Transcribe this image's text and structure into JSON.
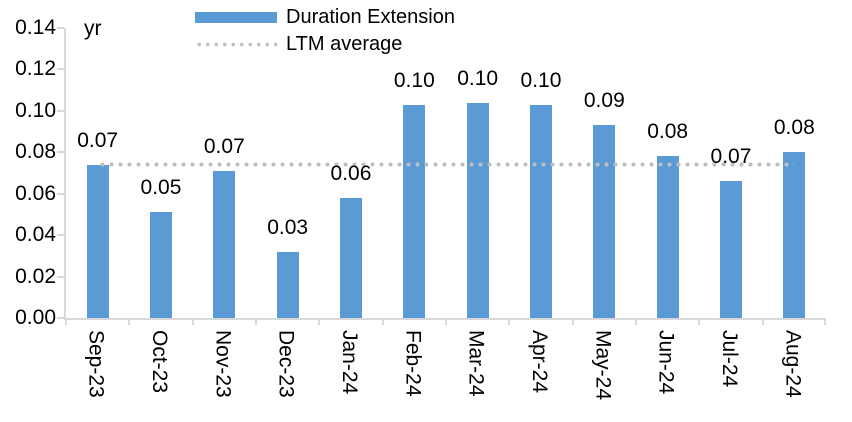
{
  "chart_data": {
    "type": "bar",
    "unit": "yr",
    "categories": [
      "Sep-23",
      "Oct-23",
      "Nov-23",
      "Dec-23",
      "Jan-24",
      "Feb-24",
      "Mar-24",
      "Apr-24",
      "May-24",
      "Jun-24",
      "Jul-24",
      "Aug-24"
    ],
    "series": [
      {
        "name": "Duration Extension",
        "values": [
          0.074,
          0.051,
          0.071,
          0.032,
          0.058,
          0.103,
          0.104,
          0.103,
          0.093,
          0.078,
          0.066,
          0.08
        ],
        "data_labels": [
          "0.07",
          "0.05",
          "0.07",
          "0.03",
          "0.06",
          "0.10",
          "0.10",
          "0.10",
          "0.09",
          "0.08",
          "0.07",
          "0.08"
        ]
      }
    ],
    "ltm_average": {
      "label": "LTM average",
      "value": 0.074
    },
    "y_axis": {
      "min": 0,
      "max": 0.14,
      "tick_step": 0.02,
      "ticks": [
        "0.14",
        "0.12",
        "0.10",
        "0.08",
        "0.06",
        "0.04",
        "0.02",
        "0.00"
      ]
    },
    "legend": [
      {
        "label": "Duration Extension",
        "swatch": "bar"
      },
      {
        "label": "LTM average",
        "swatch": "dotted"
      }
    ],
    "grid": false,
    "legend_position": "top-center",
    "colors": {
      "bar": "#5B9BD5",
      "dot": "#BFBFBF",
      "axis": "#D9D9D9",
      "text": "#000000"
    }
  }
}
